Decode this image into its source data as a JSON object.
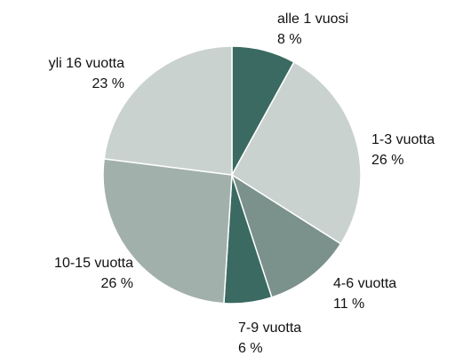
{
  "chart_data": {
    "type": "pie",
    "categories": [
      "alle 1 vuosi",
      "1-3 vuotta",
      "4-6 vuotta",
      "7-9 vuotta",
      "10-15 vuotta",
      "yli 16 vuotta"
    ],
    "values": [
      8,
      26,
      11,
      6,
      26,
      23
    ],
    "value_labels": [
      "8 %",
      "26 %",
      "11 %",
      "6 %",
      "26 %",
      "23 %"
    ],
    "colors": [
      "#3a6a61",
      "#c9d2cf",
      "#7b918b",
      "#3a6a61",
      "#a2b0ac",
      "#c9d2cf"
    ]
  }
}
